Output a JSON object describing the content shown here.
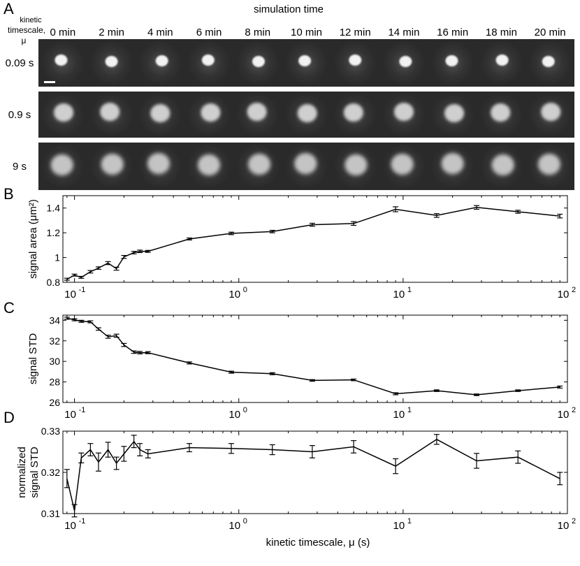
{
  "panel_a": {
    "letter": "A",
    "title": "simulation time",
    "row_header_line1": "kinetic",
    "row_header_line2": "timescale,",
    "row_header_line3": "μ",
    "time_labels": [
      "0 min",
      "2 min",
      "4 min",
      "6 min",
      "8 min",
      "10 min",
      "12 min",
      "14 min",
      "16 min",
      "18 min",
      "20 min"
    ],
    "row_labels": [
      "0.09 s",
      "0.9 s",
      "9 s"
    ]
  },
  "chart_data": [
    {
      "type": "line",
      "panel": "B",
      "ylabel": "signal area (μm²)",
      "xscale": "log",
      "xlim": [
        0.085,
        100
      ],
      "ylim": [
        0.8,
        1.5
      ],
      "yticks": [
        0.8,
        1,
        1.2,
        1.4
      ],
      "yticklabels": [
        "0.8",
        "1",
        "1.2",
        "1.4"
      ],
      "x": [
        0.09,
        0.1,
        0.11,
        0.125,
        0.14,
        0.16,
        0.18,
        0.2,
        0.23,
        0.25,
        0.28,
        0.5,
        0.9,
        1.6,
        2.8,
        5,
        9,
        16,
        28,
        50,
        90
      ],
      "y": [
        0.825,
        0.858,
        0.84,
        0.885,
        0.915,
        0.955,
        0.91,
        1.005,
        1.04,
        1.05,
        1.05,
        1.15,
        1.195,
        1.21,
        1.265,
        1.275,
        1.39,
        1.34,
        1.405,
        1.37,
        1.335
      ],
      "err": [
        0.008,
        0.008,
        0.008,
        0.01,
        0.01,
        0.012,
        0.012,
        0.012,
        0.01,
        0.01,
        0.008,
        0.008,
        0.01,
        0.01,
        0.012,
        0.015,
        0.02,
        0.015,
        0.015,
        0.012,
        0.015
      ]
    },
    {
      "type": "line",
      "panel": "C",
      "ylabel": "signal STD",
      "xscale": "log",
      "xlim": [
        0.085,
        100
      ],
      "ylim": [
        26,
        34.5
      ],
      "yticks": [
        26,
        28,
        30,
        32,
        34
      ],
      "yticklabels": [
        "26",
        "28",
        "30",
        "32",
        "34"
      ],
      "x": [
        0.09,
        0.1,
        0.11,
        0.125,
        0.14,
        0.16,
        0.18,
        0.2,
        0.23,
        0.25,
        0.28,
        0.5,
        0.9,
        1.6,
        2.8,
        5,
        9,
        16,
        28,
        50,
        90
      ],
      "y": [
        34.2,
        34.05,
        33.9,
        33.85,
        33.15,
        32.4,
        32.5,
        31.6,
        30.9,
        30.85,
        30.85,
        29.85,
        28.95,
        28.8,
        28.15,
        28.2,
        26.85,
        27.15,
        26.75,
        27.15,
        27.5
      ],
      "err": [
        0.1,
        0.1,
        0.1,
        0.1,
        0.12,
        0.15,
        0.15,
        0.15,
        0.12,
        0.12,
        0.1,
        0.1,
        0.1,
        0.1,
        0.08,
        0.08,
        0.1,
        0.08,
        0.08,
        0.08,
        0.1
      ]
    },
    {
      "type": "line",
      "panel": "D",
      "ylabel_line1": "normalized",
      "ylabel_line2": "signal STD",
      "xlabel": "kinetic timescale, μ (s)",
      "xscale": "log",
      "xlim": [
        0.085,
        100
      ],
      "ylim": [
        0.31,
        0.33
      ],
      "yticks": [
        0.31,
        0.32,
        0.33
      ],
      "yticklabels": [
        "0.31",
        "0.32",
        "0.33"
      ],
      "x": [
        0.09,
        0.1,
        0.11,
        0.125,
        0.14,
        0.16,
        0.18,
        0.2,
        0.23,
        0.25,
        0.28,
        0.5,
        0.9,
        1.6,
        2.8,
        5,
        9,
        16,
        28,
        50,
        90
      ],
      "y": [
        0.3185,
        0.3107,
        0.3235,
        0.3255,
        0.3225,
        0.3255,
        0.3222,
        0.3245,
        0.3275,
        0.3255,
        0.3245,
        0.326,
        0.3258,
        0.3255,
        0.325,
        0.3262,
        0.3215,
        0.328,
        0.3228,
        0.3237,
        0.3185
      ],
      "err": [
        0.0022,
        0.0015,
        0.0012,
        0.0015,
        0.0022,
        0.0018,
        0.0015,
        0.0018,
        0.0015,
        0.0015,
        0.001,
        0.001,
        0.0012,
        0.0012,
        0.0015,
        0.0015,
        0.0018,
        0.0012,
        0.0018,
        0.0015,
        0.0015
      ]
    }
  ],
  "shared_xaxis": {
    "tick_bases": [
      "10",
      "10",
      "10",
      "10"
    ],
    "tick_exps": [
      "-1",
      "0",
      "1",
      "2"
    ]
  },
  "panel_letters": {
    "b": "B",
    "c": "C",
    "d": "D"
  },
  "colors": {
    "line": "#000000",
    "tile_bg": "#2a2a2a",
    "spot": "#f0f0f0",
    "scale_bar": "#ffffff"
  }
}
